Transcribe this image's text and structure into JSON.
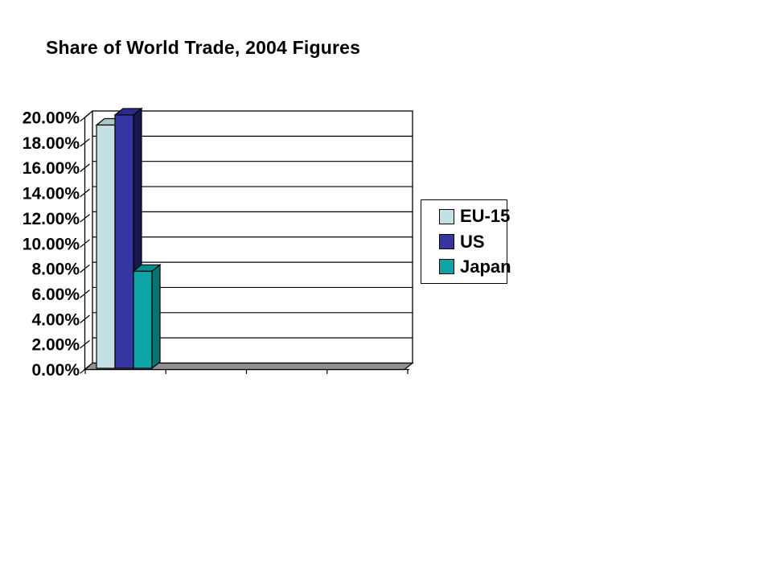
{
  "chart_data": {
    "type": "bar",
    "variant": "3d-clustered-column",
    "title": "Share of World Trade, 2004 Figures",
    "categories": [
      ""
    ],
    "series": [
      {
        "name": "EU-15",
        "values": [
          19.3
        ],
        "color": "#C3E1E5",
        "color_top": "#AAC7CB",
        "color_side": "#8FB0B5"
      },
      {
        "name": "US",
        "values": [
          20.1
        ],
        "color": "#3636A2",
        "color_top": "#2B2B8A",
        "color_side": "#18184E"
      },
      {
        "name": "Japan",
        "values": [
          7.7
        ],
        "color": "#0CA4A4",
        "color_top": "#0A8C8C",
        "color_side": "#077373"
      }
    ],
    "ylim": [
      0,
      20
    ],
    "ytick_step": 2,
    "ytick_labels": [
      "0.00%",
      "2.00%",
      "4.00%",
      "6.00%",
      "8.00%",
      "10.00%",
      "12.00%",
      "14.00%",
      "16.00%",
      "18.00%",
      "20.00%"
    ],
    "unit": "%",
    "grid": true,
    "legend_position": "right",
    "plot_bg": "#FFFFFF",
    "floor_color": "#919191",
    "line_color": "#000000",
    "xlabel": "",
    "ylabel": ""
  }
}
